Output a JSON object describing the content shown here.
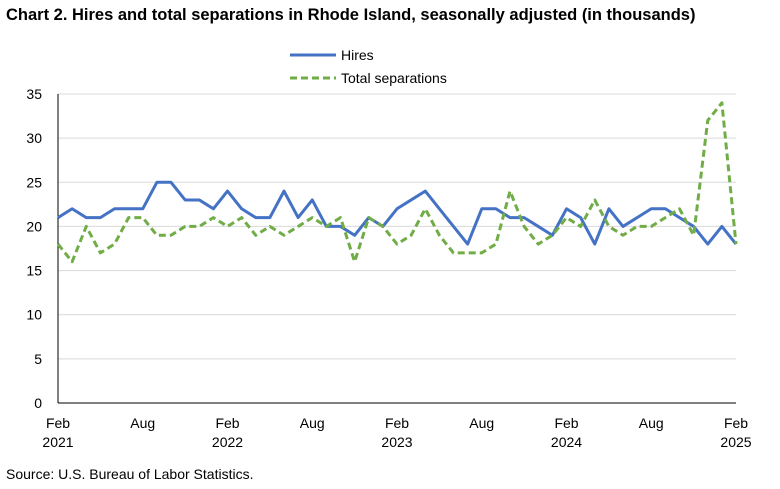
{
  "title": "Chart 2. Hires and total separations in Rhode Island, seasonally adjusted (in thousands)",
  "source": "Source: U.S. Bureau of Labor Statistics.",
  "chart_data": {
    "type": "line",
    "title": "Chart 2. Hires and total separations in Rhode Island, seasonally adjusted (in thousands)",
    "xlabel": "",
    "ylabel": "",
    "ylim": [
      0,
      35
    ],
    "yticks": [
      0,
      5,
      10,
      15,
      20,
      25,
      30,
      35
    ],
    "grid": "horizontal",
    "legend": "top-center",
    "x": [
      "2021-02",
      "2021-03",
      "2021-04",
      "2021-05",
      "2021-06",
      "2021-07",
      "2021-08",
      "2021-09",
      "2021-10",
      "2021-11",
      "2021-12",
      "2022-01",
      "2022-02",
      "2022-03",
      "2022-04",
      "2022-05",
      "2022-06",
      "2022-07",
      "2022-08",
      "2022-09",
      "2022-10",
      "2022-11",
      "2022-12",
      "2023-01",
      "2023-02",
      "2023-03",
      "2023-04",
      "2023-05",
      "2023-06",
      "2023-07",
      "2023-08",
      "2023-09",
      "2023-10",
      "2023-11",
      "2023-12",
      "2024-01",
      "2024-02",
      "2024-03",
      "2024-04",
      "2024-05",
      "2024-06",
      "2024-07",
      "2024-08",
      "2024-09",
      "2024-10",
      "2024-11",
      "2024-12",
      "2025-01",
      "2025-02"
    ],
    "xtick_labels": [
      {
        "month": "Feb",
        "year": "2021",
        "index": 0
      },
      {
        "month": "Aug",
        "year": "",
        "index": 6
      },
      {
        "month": "Feb",
        "year": "2022",
        "index": 12
      },
      {
        "month": "Aug",
        "year": "",
        "index": 18
      },
      {
        "month": "Feb",
        "year": "2023",
        "index": 24
      },
      {
        "month": "Aug",
        "year": "",
        "index": 30
      },
      {
        "month": "Feb",
        "year": "2024",
        "index": 36
      },
      {
        "month": "Aug",
        "year": "",
        "index": 42
      },
      {
        "month": "Feb",
        "year": "2025",
        "index": 48
      }
    ],
    "series": [
      {
        "name": "Hires",
        "color": "#4472C4",
        "style": "solid",
        "values": [
          21,
          22,
          21,
          21,
          22,
          22,
          22,
          25,
          25,
          23,
          23,
          22,
          24,
          22,
          21,
          21,
          24,
          21,
          23,
          20,
          20,
          19,
          21,
          20,
          22,
          23,
          24,
          22,
          20,
          18,
          22,
          22,
          21,
          21,
          20,
          19,
          22,
          21,
          18,
          22,
          20,
          21,
          22,
          22,
          21,
          20,
          18,
          20,
          18
        ]
      },
      {
        "name": "Total separations",
        "color": "#70AD47",
        "style": "dashed",
        "values": [
          18,
          16,
          20,
          17,
          18,
          21,
          21,
          19,
          19,
          20,
          20,
          21,
          20,
          21,
          19,
          20,
          19,
          20,
          21,
          20,
          21,
          16,
          21,
          20,
          18,
          19,
          22,
          19,
          17,
          17,
          17,
          18,
          24,
          20,
          18,
          19,
          21,
          20,
          23,
          20,
          19,
          20,
          20,
          21,
          22,
          19,
          32,
          34,
          18
        ]
      }
    ]
  }
}
